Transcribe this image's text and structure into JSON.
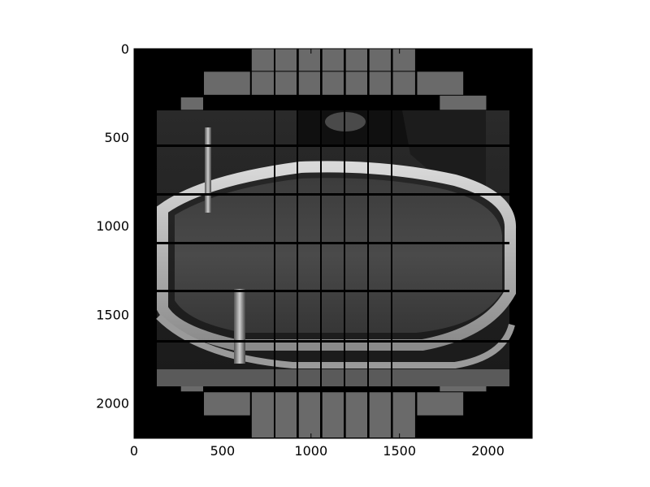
{
  "chart_data": {
    "type": "heatmap",
    "title": "",
    "xlabel": "",
    "ylabel": "",
    "xlim": [
      0,
      2250
    ],
    "ylim": [
      2200,
      0
    ],
    "x_ticks": [
      0,
      500,
      1000,
      1500,
      2000
    ],
    "y_ticks": [
      0,
      500,
      1000,
      1500,
      2000
    ],
    "x_tick_labels": [
      "0",
      "500",
      "1000",
      "1500",
      "2000"
    ],
    "y_tick_labels": [
      "0",
      "500",
      "1000",
      "1500",
      "2000"
    ],
    "colormap": "gray",
    "background_color": "#000000",
    "photo_region": {
      "x": [
        135,
        2125
      ],
      "y": [
        350,
        1910
      ]
    },
    "tiles": [
      {
        "x0": 665,
        "x1": 795,
        "y0": 0,
        "y1": 130,
        "shade": "#6a6a6a"
      },
      {
        "x0": 798,
        "x1": 928,
        "y0": 0,
        "y1": 130,
        "shade": "#6a6a6a"
      },
      {
        "x0": 931,
        "x1": 1061,
        "y0": 0,
        "y1": 130,
        "shade": "#6a6a6a"
      },
      {
        "x0": 1064,
        "x1": 1194,
        "y0": 0,
        "y1": 130,
        "shade": "#6a6a6a"
      },
      {
        "x0": 1197,
        "x1": 1327,
        "y0": 0,
        "y1": 130,
        "shade": "#6a6a6a"
      },
      {
        "x0": 1330,
        "x1": 1460,
        "y0": 0,
        "y1": 130,
        "shade": "#6a6a6a"
      },
      {
        "x0": 1463,
        "x1": 1593,
        "y0": 0,
        "y1": 130,
        "shade": "#6a6a6a"
      },
      {
        "x0": 665,
        "x1": 795,
        "y0": 130,
        "y1": 265,
        "shade": "#6a6a6a"
      },
      {
        "x0": 798,
        "x1": 928,
        "y0": 130,
        "y1": 265,
        "shade": "#6a6a6a"
      },
      {
        "x0": 931,
        "x1": 1061,
        "y0": 130,
        "y1": 265,
        "shade": "#6a6a6a"
      },
      {
        "x0": 1064,
        "x1": 1194,
        "y0": 130,
        "y1": 265,
        "shade": "#6a6a6a"
      },
      {
        "x0": 1197,
        "x1": 1327,
        "y0": 130,
        "y1": 265,
        "shade": "#6a6a6a"
      },
      {
        "x0": 1330,
        "x1": 1460,
        "y0": 130,
        "y1": 265,
        "shade": "#6a6a6a"
      },
      {
        "x0": 1463,
        "x1": 1593,
        "y0": 130,
        "y1": 265,
        "shade": "#6a6a6a"
      },
      {
        "x0": 395,
        "x1": 660,
        "y0": 130,
        "y1": 265,
        "shade": "#6a6a6a"
      },
      {
        "x0": 1600,
        "x1": 1865,
        "y0": 130,
        "y1": 265,
        "shade": "#6a6a6a"
      },
      {
        "x0": 265,
        "x1": 395,
        "y0": 275,
        "y1": 350,
        "shade": "#6a6a6a"
      },
      {
        "x0": 1728,
        "x1": 1995,
        "y0": 265,
        "y1": 350,
        "shade": "#6a6a6a"
      },
      {
        "x0": 265,
        "x1": 395,
        "y0": 1855,
        "y1": 1940,
        "shade": "#6a6a6a"
      },
      {
        "x0": 1728,
        "x1": 1995,
        "y0": 1855,
        "y1": 1940,
        "shade": "#6a6a6a"
      },
      {
        "x0": 395,
        "x1": 660,
        "y0": 1940,
        "y1": 2075,
        "shade": "#6a6a6a"
      },
      {
        "x0": 1600,
        "x1": 1865,
        "y0": 1940,
        "y1": 2075,
        "shade": "#6a6a6a"
      },
      {
        "x0": 665,
        "x1": 795,
        "y0": 1940,
        "y1": 2200,
        "shade": "#6a6a6a"
      },
      {
        "x0": 798,
        "x1": 928,
        "y0": 1940,
        "y1": 2200,
        "shade": "#6a6a6a"
      },
      {
        "x0": 931,
        "x1": 1061,
        "y0": 1940,
        "y1": 2200,
        "shade": "#6a6a6a"
      },
      {
        "x0": 1064,
        "x1": 1194,
        "y0": 1940,
        "y1": 2200,
        "shade": "#6a6a6a"
      },
      {
        "x0": 1197,
        "x1": 1327,
        "y0": 1940,
        "y1": 2200,
        "shade": "#6a6a6a"
      },
      {
        "x0": 1330,
        "x1": 1460,
        "y0": 1940,
        "y1": 2200,
        "shade": "#6a6a6a"
      },
      {
        "x0": 1463,
        "x1": 1593,
        "y0": 1940,
        "y1": 2200,
        "shade": "#6a6a6a"
      }
    ]
  }
}
